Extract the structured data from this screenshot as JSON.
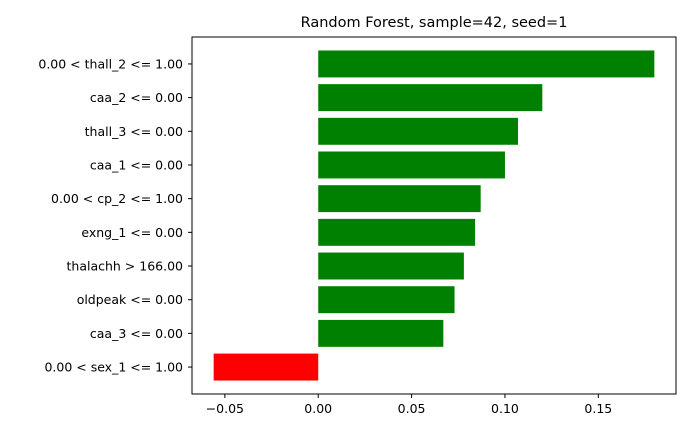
{
  "chart_data": {
    "type": "bar",
    "orientation": "horizontal",
    "title": "Random Forest, sample=42, seed=1",
    "xlabel": "",
    "ylabel": "",
    "grid": false,
    "xlim": [
      -0.0676,
      0.1916
    ],
    "xticks": [
      -0.05,
      0.0,
      0.05,
      0.1,
      0.15
    ],
    "xtick_labels": [
      "−0.05",
      "0.00",
      "0.05",
      "0.10",
      "0.15"
    ],
    "categories": [
      "0.00 < thall_2 <= 1.00",
      "caa_2 <= 0.00",
      "thall_3 <= 0.00",
      "caa_1 <= 0.00",
      "0.00 < cp_2 <= 1.00",
      "exng_1 <= 0.00",
      "thalachh > 166.00",
      "oldpeak <= 0.00",
      "caa_3 <= 0.00",
      "0.00 < sex_1 <= 1.00"
    ],
    "values": [
      0.18,
      0.12,
      0.107,
      0.1,
      0.087,
      0.084,
      0.078,
      0.073,
      0.067,
      -0.056
    ],
    "colors": {
      "positive": "#008000",
      "negative": "#ff0000",
      "axis": "#000000"
    }
  }
}
